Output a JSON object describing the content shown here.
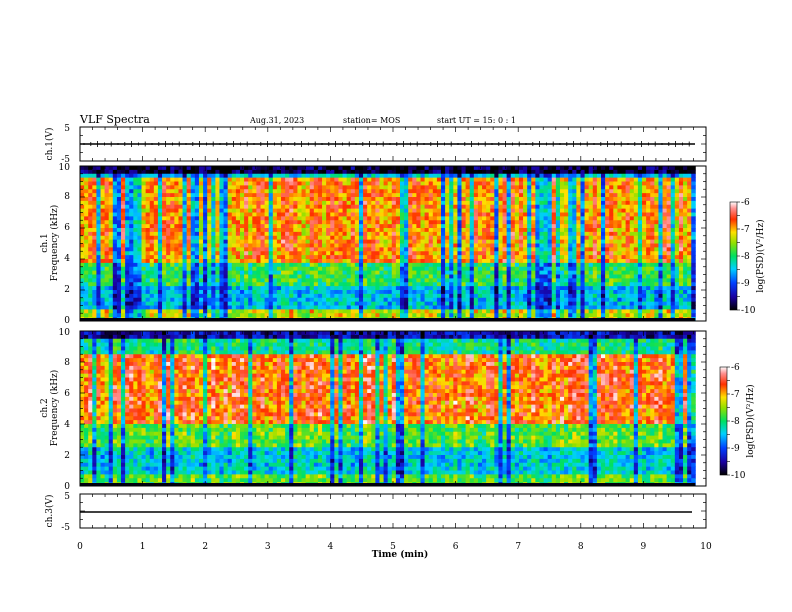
{
  "header": {
    "title": "VLF Spectra",
    "date": "Aug.31, 2023",
    "station": "station= MOS",
    "start": "start  UT =   15: 0  : 1"
  },
  "chart_data": [
    {
      "type": "line",
      "panel": "channel-1-waveform",
      "ylabel": "ch.1(V)",
      "y_ticks": [
        "5",
        "-5"
      ],
      "ylim": [
        -5,
        5
      ],
      "x": [
        0,
        1,
        2,
        3,
        4,
        5,
        6,
        7,
        8,
        9,
        9.83
      ],
      "values": [
        -0.2,
        -0.3,
        -0.2,
        -0.3,
        -0.2,
        -0.3,
        -0.2,
        -0.3,
        -0.2,
        -0.3,
        -0.2
      ]
    },
    {
      "type": "heatmap",
      "panel": "channel-1-spectrogram",
      "ylabel_top": "ch.1",
      "ylabel": "Frequency (kHz)",
      "y_ticks": [
        "0",
        "2",
        "4",
        "6",
        "8",
        "10"
      ],
      "ylim": [
        0,
        10
      ],
      "xlim": [
        0,
        10
      ],
      "data_extent_min": 9.83,
      "colorbar": {
        "label": "log(PSD)(V²/Hz)",
        "range": [
          -10,
          -6
        ],
        "ticks": [
          "-6",
          "-7",
          "-8",
          "-9",
          "-10"
        ]
      },
      "dominant_band_khz": [
        4,
        9
      ],
      "dominant_log_psd": -7
    },
    {
      "type": "heatmap",
      "panel": "channel-2-spectrogram",
      "ylabel_top": "ch.2",
      "ylabel": "Frequency (kHz)",
      "y_ticks": [
        "0",
        "2",
        "4",
        "6",
        "8",
        "10"
      ],
      "ylim": [
        0,
        10
      ],
      "xlim": [
        0,
        10
      ],
      "data_extent_min": 9.83,
      "colorbar": {
        "label": "log(PSD)(V²/Hz)",
        "range": [
          -10,
          -6
        ],
        "ticks": [
          "-6",
          "-7",
          "-8",
          "-9",
          "-10"
        ]
      },
      "dominant_band_khz": [
        4,
        8
      ],
      "dominant_log_psd": -6.8
    },
    {
      "type": "line",
      "panel": "channel-3-waveform",
      "ylabel": "ch.3(V)",
      "y_ticks": [
        "5",
        "-5"
      ],
      "ylim": [
        -5,
        5
      ],
      "x": [
        0,
        9.83
      ],
      "values": [
        -0.5,
        -0.5
      ],
      "xlabel": "Time (min)",
      "x_ticks": [
        "0",
        "1",
        "2",
        "3",
        "4",
        "5",
        "6",
        "7",
        "8",
        "9",
        "10"
      ],
      "xlim": [
        0,
        10
      ]
    }
  ]
}
